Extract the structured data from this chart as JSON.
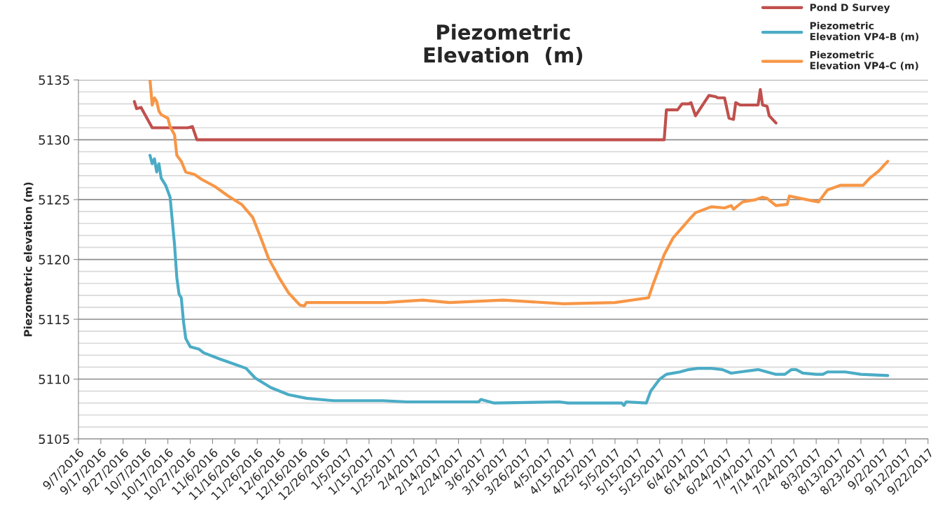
{
  "chart_data": {
    "type": "line",
    "title": "Piezometric\nElevation  (m)",
    "ylabel": "Piezometric elevation (m)",
    "series": [
      {
        "name": "Pond D Survey",
        "color": "#c0504d",
        "x": [
          "2016-10-02",
          "2016-10-03",
          "2016-10-05",
          "2016-10-10",
          "2016-10-26",
          "2016-10-28",
          "2016-10-30",
          "2017-05-27",
          "2017-05-28",
          "2017-06-02",
          "2017-06-04",
          "2017-06-07",
          "2017-06-08",
          "2017-06-10",
          "2017-06-16",
          "2017-06-19",
          "2017-06-20",
          "2017-06-23",
          "2017-06-25",
          "2017-06-27",
          "2017-06-28",
          "2017-06-30",
          "2017-07-08",
          "2017-07-09",
          "2017-07-10",
          "2017-07-12",
          "2017-07-13",
          "2017-07-16"
        ],
        "values": [
          5133.2,
          5132.6,
          5132.7,
          5131.0,
          5131.0,
          5131.1,
          5130.0,
          5130.0,
          5132.5,
          5132.5,
          5133.0,
          5133.0,
          5133.1,
          5132.0,
          5133.7,
          5133.6,
          5133.5,
          5133.5,
          5131.8,
          5131.7,
          5133.1,
          5132.9,
          5132.9,
          5134.2,
          5132.9,
          5132.8,
          5132.0,
          5131.4
        ]
      },
      {
        "name": "Piezometric\nElevation VP4-B (m)",
        "color": "#4bacc6",
        "x": [
          "2016-10-09",
          "2016-10-10",
          "2016-10-11",
          "2016-10-12",
          "2016-10-13",
          "2016-10-14",
          "2016-10-16",
          "2016-10-18",
          "2016-10-20",
          "2016-10-21",
          "2016-10-22",
          "2016-10-23",
          "2016-10-24",
          "2016-10-25",
          "2016-10-27",
          "2016-10-31",
          "2016-11-02",
          "2016-11-09",
          "2016-11-15",
          "2016-11-21",
          "2016-11-25",
          "2016-12-02",
          "2016-12-10",
          "2016-12-18",
          "2016-12-30",
          "2017-01-21",
          "2017-02-01",
          "2017-03-05",
          "2017-03-06",
          "2017-03-12",
          "2017-04-10",
          "2017-04-14",
          "2017-05-08",
          "2017-05-09",
          "2017-05-10",
          "2017-05-19",
          "2017-05-21",
          "2017-05-25",
          "2017-05-28",
          "2017-06-03",
          "2017-06-07",
          "2017-06-11",
          "2017-06-17",
          "2017-06-22",
          "2017-06-26",
          "2017-06-30",
          "2017-07-08",
          "2017-07-16",
          "2017-07-20",
          "2017-07-23",
          "2017-07-25",
          "2017-07-28",
          "2017-08-03",
          "2017-08-06",
          "2017-08-08",
          "2017-08-16",
          "2017-08-23",
          "2017-09-04"
        ],
        "values": [
          5128.7,
          5128.0,
          5128.4,
          5127.3,
          5128.0,
          5126.8,
          5126.2,
          5125.2,
          5121.2,
          5118.5,
          5117.1,
          5116.8,
          5114.8,
          5113.4,
          5112.7,
          5112.5,
          5112.2,
          5111.7,
          5111.3,
          5110.9,
          5110.1,
          5109.3,
          5108.7,
          5108.4,
          5108.2,
          5108.2,
          5108.1,
          5108.1,
          5108.3,
          5108.0,
          5108.1,
          5108.0,
          5108.0,
          5107.8,
          5108.1,
          5108.0,
          5109.0,
          5110.0,
          5110.4,
          5110.6,
          5110.8,
          5110.9,
          5110.9,
          5110.8,
          5110.5,
          5110.6,
          5110.8,
          5110.4,
          5110.4,
          5110.8,
          5110.8,
          5110.5,
          5110.4,
          5110.4,
          5110.6,
          5110.6,
          5110.4,
          5110.3
        ]
      },
      {
        "name": "Piezometric\nElevation VP4-C (m)",
        "color": "#f79646",
        "x": [
          "2016-10-09",
          "2016-10-10",
          "2016-10-11",
          "2016-10-12",
          "2016-10-13",
          "2016-10-14",
          "2016-10-17",
          "2016-10-18",
          "2016-10-20",
          "2016-10-21",
          "2016-10-23",
          "2016-10-25",
          "2016-10-29",
          "2016-11-01",
          "2016-11-07",
          "2016-11-13",
          "2016-11-19",
          "2016-11-24",
          "2016-11-28",
          "2016-12-01",
          "2016-12-04",
          "2016-12-06",
          "2016-12-10",
          "2016-12-15",
          "2016-12-17",
          "2016-12-18",
          "2017-01-15",
          "2017-01-22",
          "2017-02-08",
          "2017-02-20",
          "2017-03-16",
          "2017-04-12",
          "2017-05-05",
          "2017-05-20",
          "2017-05-22",
          "2017-05-27",
          "2017-05-31",
          "2017-06-08",
          "2017-06-10",
          "2017-06-17",
          "2017-06-23",
          "2017-06-26",
          "2017-06-27",
          "2017-07-01",
          "2017-07-07",
          "2017-07-10",
          "2017-07-12",
          "2017-07-16",
          "2017-07-21",
          "2017-07-22",
          "2017-07-27",
          "2017-08-04",
          "2017-08-08",
          "2017-08-14",
          "2017-08-24",
          "2017-08-27",
          "2017-08-31",
          "2017-09-04"
        ],
        "values": [
          5135.0,
          5132.9,
          5133.5,
          5133.2,
          5132.4,
          5132.1,
          5131.8,
          5131.1,
          5130.4,
          5128.7,
          5128.2,
          5127.3,
          5127.1,
          5126.7,
          5126.1,
          5125.3,
          5124.6,
          5123.5,
          5121.6,
          5120.1,
          5119.1,
          5118.4,
          5117.2,
          5116.2,
          5116.1,
          5116.4,
          5116.4,
          5116.4,
          5116.6,
          5116.4,
          5116.6,
          5116.3,
          5116.4,
          5116.8,
          5117.9,
          5120.4,
          5121.8,
          5123.5,
          5123.9,
          5124.4,
          5124.3,
          5124.5,
          5124.2,
          5124.8,
          5125.0,
          5125.2,
          5125.1,
          5124.5,
          5124.6,
          5125.3,
          5125.1,
          5124.8,
          5125.8,
          5126.2,
          5126.2,
          5126.8,
          5127.4,
          5128.2
        ]
      }
    ],
    "xlim": [
      "2016-09-07",
      "2017-09-22"
    ],
    "xticks": [
      {
        "value": "2016-09-07",
        "label": "9/7/2016"
      },
      {
        "value": "2016-09-17",
        "label": "9/17/2016"
      },
      {
        "value": "2016-09-27",
        "label": "9/27/2016"
      },
      {
        "value": "2016-10-07",
        "label": "10/7/2016"
      },
      {
        "value": "2016-10-17",
        "label": "10/17/2016"
      },
      {
        "value": "2016-10-27",
        "label": "10/27/2016"
      },
      {
        "value": "2016-11-06",
        "label": "11/6/2016"
      },
      {
        "value": "2016-11-16",
        "label": "11/16/2016"
      },
      {
        "value": "2016-11-26",
        "label": "11/26/2016"
      },
      {
        "value": "2016-12-06",
        "label": "12/6/2016"
      },
      {
        "value": "2016-12-16",
        "label": "12/16/2016"
      },
      {
        "value": "2016-12-26",
        "label": "12/26/2016"
      },
      {
        "value": "2017-01-05",
        "label": "1/5/2017"
      },
      {
        "value": "2017-01-15",
        "label": "1/15/2017"
      },
      {
        "value": "2017-01-25",
        "label": "1/25/2017"
      },
      {
        "value": "2017-02-04",
        "label": "2/4/2017"
      },
      {
        "value": "2017-02-14",
        "label": "2/14/2017"
      },
      {
        "value": "2017-02-24",
        "label": "2/24/2017"
      },
      {
        "value": "2017-03-06",
        "label": "3/6/2017"
      },
      {
        "value": "2017-03-16",
        "label": "3/16/2017"
      },
      {
        "value": "2017-03-26",
        "label": "3/26/2017"
      },
      {
        "value": "2017-04-05",
        "label": "4/5/2017"
      },
      {
        "value": "2017-04-15",
        "label": "4/15/2017"
      },
      {
        "value": "2017-04-25",
        "label": "4/25/2017"
      },
      {
        "value": "2017-05-05",
        "label": "5/5/2017"
      },
      {
        "value": "2017-05-15",
        "label": "5/15/2017"
      },
      {
        "value": "2017-05-25",
        "label": "5/25/2017"
      },
      {
        "value": "2017-06-04",
        "label": "6/4/2017"
      },
      {
        "value": "2017-06-14",
        "label": "6/14/2017"
      },
      {
        "value": "2017-06-24",
        "label": "6/24/2017"
      },
      {
        "value": "2017-07-04",
        "label": "7/4/2017"
      },
      {
        "value": "2017-07-14",
        "label": "7/14/2017"
      },
      {
        "value": "2017-07-24",
        "label": "7/24/2017"
      },
      {
        "value": "2017-08-03",
        "label": "8/3/2017"
      },
      {
        "value": "2017-08-13",
        "label": "8/13/2017"
      },
      {
        "value": "2017-08-23",
        "label": "8/23/2017"
      },
      {
        "value": "2017-09-02",
        "label": "9/2/2017"
      },
      {
        "value": "2017-09-12",
        "label": "9/12/2017"
      },
      {
        "value": "2017-09-22",
        "label": "9/22/2017"
      }
    ],
    "ylim": [
      5105,
      5135
    ],
    "yticks": [
      5105,
      {
        "value": 5106,
        "label": null
      },
      {
        "value": 5107,
        "label": null
      },
      {
        "value": 5108,
        "label": null
      },
      {
        "value": 5109,
        "label": null
      },
      5110,
      {
        "value": 5111,
        "label": null
      },
      {
        "value": 5112,
        "label": null
      },
      {
        "value": 5113,
        "label": null
      },
      {
        "value": 5114,
        "label": null
      },
      5115,
      {
        "value": 5116,
        "label": null
      },
      {
        "value": 5117,
        "label": null
      },
      {
        "value": 5118,
        "label": null
      },
      {
        "value": 5119,
        "label": null
      },
      5120,
      {
        "value": 5121,
        "label": null
      },
      {
        "value": 5122,
        "label": null
      },
      {
        "value": 5123,
        "label": null
      },
      {
        "value": 5124,
        "label": null
      },
      5125,
      {
        "value": 5126,
        "label": null
      },
      {
        "value": 5127,
        "label": null
      },
      {
        "value": 5128,
        "label": null
      },
      {
        "value": 5129,
        "label": null
      },
      5130,
      {
        "value": 5131,
        "label": null
      },
      {
        "value": 5132,
        "label": null
      },
      {
        "value": 5133,
        "label": null
      },
      {
        "value": 5134,
        "label": null
      },
      5135
    ],
    "grid": "y",
    "legend": "top right",
    "marker": "none",
    "line_style": "solid"
  }
}
